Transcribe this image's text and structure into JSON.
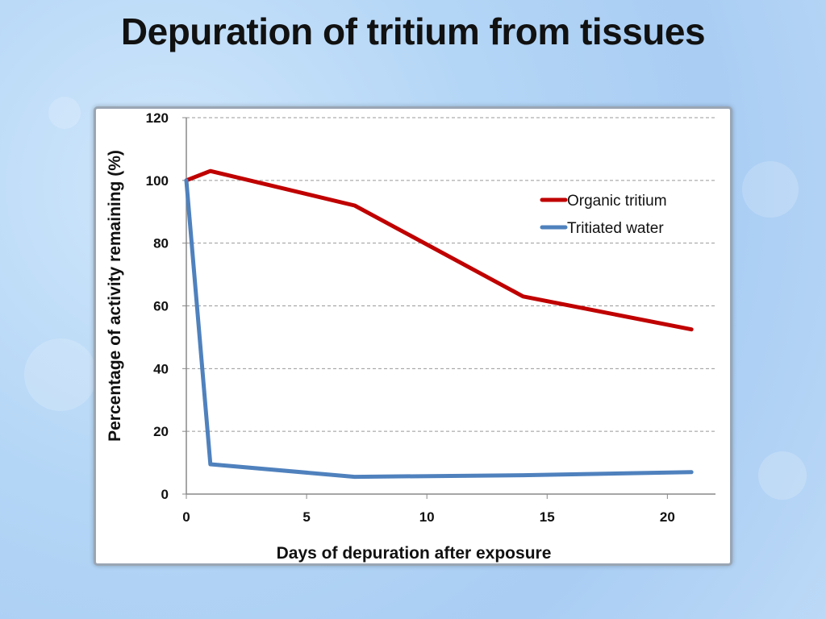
{
  "slide": {
    "title": "Depuration of tritium from tissues"
  },
  "colors": {
    "organic": "#c00000",
    "water": "#4f81bd",
    "grid": "#999999",
    "axis": "#888888"
  },
  "chart_data": {
    "type": "line",
    "title": "",
    "xlabel": "Days of depuration after exposure",
    "ylabel": "Percentage of activity remaining (%)",
    "xlim": [
      0,
      22
    ],
    "ylim": [
      0,
      120
    ],
    "x_ticks": [
      0,
      5,
      10,
      15,
      20
    ],
    "y_ticks": [
      0,
      20,
      40,
      60,
      80,
      100,
      120
    ],
    "grid": "horizontal dashed",
    "legend_position": "top-right",
    "series": [
      {
        "name": "Organic tritium",
        "color": "#c00000",
        "x": [
          0,
          1,
          7,
          14,
          21
        ],
        "y": [
          100,
          103,
          92,
          63,
          52.5
        ]
      },
      {
        "name": "Tritiated water",
        "color": "#4f81bd",
        "x": [
          0,
          1,
          7,
          14,
          21
        ],
        "y": [
          100,
          9.5,
          5.5,
          6,
          7
        ]
      }
    ]
  }
}
